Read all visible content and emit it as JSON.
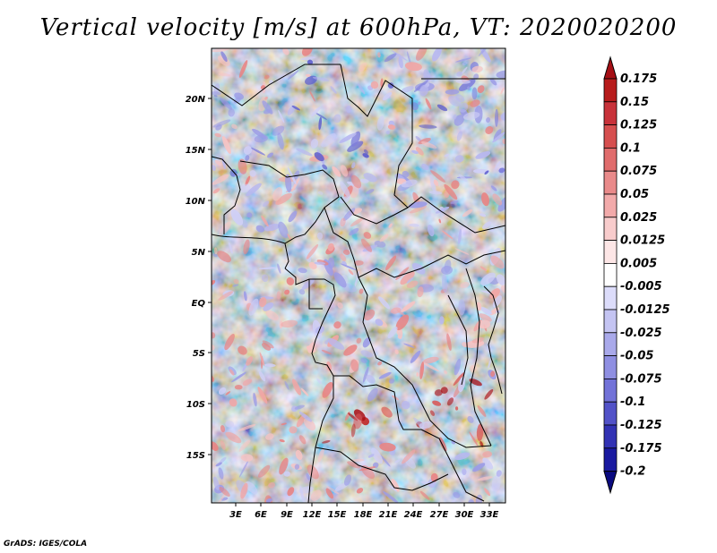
{
  "title": "Vertical velocity [m/s] at 600hPa, VT: 2020020200",
  "credit": "GrADS: IGES/COLA",
  "map": {
    "lat_labels": [
      "20N",
      "15N",
      "10N",
      "5N",
      "EQ",
      "5S",
      "10S",
      "15S"
    ],
    "lon_labels": [
      "3E",
      "6E",
      "9E",
      "12E",
      "15E",
      "18E",
      "21E",
      "24E",
      "27E",
      "30E",
      "33E"
    ]
  },
  "colorbar": {
    "labels": [
      "0.175",
      "0.15",
      "0.125",
      "0.1",
      "0.075",
      "0.05",
      "0.025",
      "0.0125",
      "0.005",
      "-0.005",
      "-0.0125",
      "-0.025",
      "-0.05",
      "-0.075",
      "-0.1",
      "-0.125",
      "-0.175",
      "-0.2"
    ],
    "colors": [
      "#a50f15",
      "#b71c1c",
      "#c8323a",
      "#d64f4f",
      "#e06c6c",
      "#e98a8a",
      "#f2aaaa",
      "#f8cccc",
      "#fde6e6",
      "#ffffff",
      "#dcdcfa",
      "#c4c4f2",
      "#a9a9ea",
      "#8f8fe2",
      "#7272d8",
      "#5252c8",
      "#3232b4",
      "#1a1aa0",
      "#0a0a80"
    ]
  }
}
